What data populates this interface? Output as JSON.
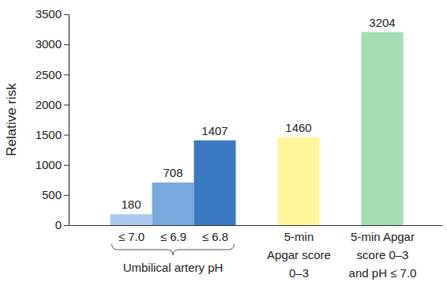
{
  "chart_data": {
    "type": "bar",
    "y_label": "Relative risk",
    "categories": [
      "≤ 7.0",
      "≤ 6.9",
      "≤ 6.8",
      "5-min\nApgar score\n0–3",
      "5-min Apgar\nscore 0–3\nand pH ≤ 7.0"
    ],
    "values": [
      180,
      708,
      1407,
      1460,
      3204
    ],
    "colors": [
      "#a9c9ec",
      "#78a9df",
      "#3c79c3",
      "#fff59b",
      "#a5dcb3"
    ],
    "annotations": [
      "Umbilical artery pH"
    ],
    "ylim": [
      0,
      3500
    ],
    "yticks": [
      0,
      500,
      1000,
      1500,
      2000,
      2500,
      3000,
      3500
    ],
    "grid": false,
    "data_labels": true
  }
}
